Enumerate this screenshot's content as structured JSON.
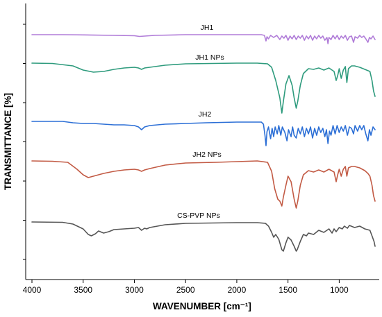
{
  "chart_data": {
    "type": "line",
    "title": "",
    "xlabel": "WAVENUMBER [cm⁻¹]",
    "ylabel": "TRANSMITTANCE [%]",
    "xlim": [
      4000,
      650
    ],
    "x_reversed": true,
    "x_ticks": [
      4000,
      3500,
      3000,
      2500,
      2000,
      1500,
      1000
    ],
    "x_tick_labels": [
      "4000",
      "3500",
      "3000",
      "2500",
      "2000",
      "1500",
      "1000"
    ],
    "y_tick_labels_shown": false,
    "grid": false,
    "legend": "none (inline series labels)",
    "series": [
      {
        "name": "JH1",
        "color": "#b07cd8",
        "offset": 0,
        "points": [
          [
            4000,
            0
          ],
          [
            3700,
            0
          ],
          [
            3500,
            -0.3
          ],
          [
            3200,
            -1
          ],
          [
            3000,
            -1.5
          ],
          [
            2950,
            -2.5
          ],
          [
            2900,
            -2
          ],
          [
            2800,
            -1
          ],
          [
            2500,
            0
          ],
          [
            2000,
            0
          ],
          [
            1760,
            0
          ],
          [
            1730,
            -1
          ],
          [
            1715,
            -9
          ],
          [
            1705,
            -3
          ],
          [
            1690,
            -6
          ],
          [
            1670,
            -1
          ],
          [
            1640,
            -4
          ],
          [
            1610,
            -1
          ],
          [
            1580,
            -7
          ],
          [
            1560,
            -2
          ],
          [
            1540,
            -5
          ],
          [
            1520,
            -1
          ],
          [
            1500,
            -8
          ],
          [
            1480,
            -2
          ],
          [
            1460,
            -6
          ],
          [
            1440,
            -1
          ],
          [
            1420,
            -7
          ],
          [
            1400,
            -2
          ],
          [
            1380,
            -5
          ],
          [
            1360,
            -1
          ],
          [
            1340,
            -8
          ],
          [
            1320,
            -2
          ],
          [
            1300,
            -6
          ],
          [
            1280,
            -1
          ],
          [
            1260,
            -8
          ],
          [
            1240,
            -2
          ],
          [
            1220,
            -6
          ],
          [
            1200,
            -1
          ],
          [
            1180,
            -5
          ],
          [
            1160,
            -2
          ],
          [
            1140,
            -8
          ],
          [
            1120,
            -4
          ],
          [
            1110,
            -13
          ],
          [
            1100,
            -4
          ],
          [
            1080,
            -7
          ],
          [
            1060,
            -1
          ],
          [
            1040,
            -6
          ],
          [
            1020,
            -1
          ],
          [
            1000,
            -7
          ],
          [
            980,
            -2
          ],
          [
            960,
            -5
          ],
          [
            940,
            -1
          ],
          [
            920,
            -8
          ],
          [
            900,
            -3
          ],
          [
            880,
            -2
          ],
          [
            860,
            -11
          ],
          [
            845,
            -3
          ],
          [
            820,
            -5
          ],
          [
            800,
            -1
          ],
          [
            780,
            -4
          ],
          [
            760,
            -2
          ],
          [
            740,
            -6
          ],
          [
            720,
            -11
          ],
          [
            705,
            -4
          ],
          [
            690,
            -6
          ],
          [
            670,
            -2
          ],
          [
            650,
            -7
          ]
        ]
      },
      {
        "name": "JH1 NPs",
        "color": "#2e9b7d",
        "offset": 1,
        "points": [
          [
            4000,
            0
          ],
          [
            3800,
            -0.5
          ],
          [
            3600,
            -4
          ],
          [
            3500,
            -10
          ],
          [
            3400,
            -13
          ],
          [
            3300,
            -12
          ],
          [
            3200,
            -9
          ],
          [
            3100,
            -7
          ],
          [
            3000,
            -6
          ],
          [
            2960,
            -7
          ],
          [
            2930,
            -9
          ],
          [
            2900,
            -7
          ],
          [
            2850,
            -6
          ],
          [
            2700,
            -3
          ],
          [
            2500,
            -1
          ],
          [
            2000,
            0
          ],
          [
            1800,
            0
          ],
          [
            1700,
            -1
          ],
          [
            1660,
            -6
          ],
          [
            1620,
            -25
          ],
          [
            1580,
            -50
          ],
          [
            1560,
            -72
          ],
          [
            1545,
            -55
          ],
          [
            1520,
            -30
          ],
          [
            1490,
            -18
          ],
          [
            1460,
            -32
          ],
          [
            1440,
            -50
          ],
          [
            1420,
            -65
          ],
          [
            1405,
            -55
          ],
          [
            1380,
            -32
          ],
          [
            1350,
            -15
          ],
          [
            1300,
            -8
          ],
          [
            1250,
            -9
          ],
          [
            1200,
            -7
          ],
          [
            1150,
            -10
          ],
          [
            1100,
            -7
          ],
          [
            1050,
            -12
          ],
          [
            1030,
            -25
          ],
          [
            1015,
            -18
          ],
          [
            1000,
            -8
          ],
          [
            980,
            -22
          ],
          [
            960,
            -10
          ],
          [
            940,
            -5
          ],
          [
            925,
            -28
          ],
          [
            910,
            -8
          ],
          [
            880,
            -4
          ],
          [
            850,
            -4
          ],
          [
            800,
            -6
          ],
          [
            750,
            -9
          ],
          [
            700,
            -12
          ],
          [
            680,
            -25
          ],
          [
            665,
            -40
          ],
          [
            650,
            -48
          ]
        ]
      },
      {
        "name": "JH2",
        "color": "#2c6fd6",
        "offset": 2,
        "points": [
          [
            4000,
            0
          ],
          [
            3700,
            0
          ],
          [
            3600,
            -2
          ],
          [
            3500,
            -3
          ],
          [
            3400,
            -3
          ],
          [
            3300,
            -4
          ],
          [
            3200,
            -5
          ],
          [
            3100,
            -5
          ],
          [
            3000,
            -6
          ],
          [
            2960,
            -8
          ],
          [
            2930,
            -12
          ],
          [
            2900,
            -8
          ],
          [
            2850,
            -6
          ],
          [
            2700,
            -4
          ],
          [
            2500,
            -3
          ],
          [
            2300,
            -2
          ],
          [
            2000,
            -1
          ],
          [
            1760,
            -1
          ],
          [
            1740,
            -4
          ],
          [
            1725,
            -20
          ],
          [
            1715,
            -35
          ],
          [
            1705,
            -15
          ],
          [
            1690,
            -8
          ],
          [
            1670,
            -25
          ],
          [
            1655,
            -10
          ],
          [
            1640,
            -22
          ],
          [
            1625,
            -8
          ],
          [
            1605,
            -18
          ],
          [
            1590,
            -6
          ],
          [
            1570,
            -20
          ],
          [
            1555,
            -8
          ],
          [
            1530,
            -16
          ],
          [
            1510,
            -28
          ],
          [
            1495,
            -12
          ],
          [
            1470,
            -22
          ],
          [
            1455,
            -8
          ],
          [
            1440,
            -20
          ],
          [
            1420,
            -24
          ],
          [
            1400,
            -10
          ],
          [
            1380,
            -18
          ],
          [
            1360,
            -8
          ],
          [
            1340,
            -22
          ],
          [
            1320,
            -10
          ],
          [
            1300,
            -18
          ],
          [
            1280,
            -8
          ],
          [
            1260,
            -24
          ],
          [
            1240,
            -10
          ],
          [
            1220,
            -20
          ],
          [
            1200,
            -8
          ],
          [
            1180,
            -16
          ],
          [
            1160,
            -10
          ],
          [
            1140,
            -22
          ],
          [
            1125,
            -12
          ],
          [
            1110,
            -32
          ],
          [
            1095,
            -14
          ],
          [
            1080,
            -20
          ],
          [
            1060,
            -6
          ],
          [
            1040,
            -18
          ],
          [
            1020,
            -6
          ],
          [
            1000,
            -16
          ],
          [
            980,
            -8
          ],
          [
            960,
            -14
          ],
          [
            940,
            -6
          ],
          [
            920,
            -20
          ],
          [
            900,
            -8
          ],
          [
            880,
            -10
          ],
          [
            860,
            -18
          ],
          [
            845,
            -6
          ],
          [
            820,
            -14
          ],
          [
            800,
            -6
          ],
          [
            780,
            -12
          ],
          [
            760,
            -6
          ],
          [
            740,
            -18
          ],
          [
            720,
            -28
          ],
          [
            705,
            -12
          ],
          [
            690,
            -20
          ],
          [
            670,
            -8
          ],
          [
            650,
            -12
          ]
        ]
      },
      {
        "name": "JH2 NPs",
        "color": "#c25a44",
        "offset": 3,
        "points": [
          [
            4000,
            0
          ],
          [
            3800,
            -0.5
          ],
          [
            3650,
            -2
          ],
          [
            3560,
            -12
          ],
          [
            3500,
            -20
          ],
          [
            3450,
            -24
          ],
          [
            3400,
            -22
          ],
          [
            3300,
            -18
          ],
          [
            3200,
            -15
          ],
          [
            3100,
            -13
          ],
          [
            3000,
            -12
          ],
          [
            2960,
            -13
          ],
          [
            2930,
            -15
          ],
          [
            2900,
            -13
          ],
          [
            2850,
            -11
          ],
          [
            2700,
            -6
          ],
          [
            2500,
            -3
          ],
          [
            2200,
            -2
          ],
          [
            2000,
            -1
          ],
          [
            1800,
            0
          ],
          [
            1700,
            -2
          ],
          [
            1660,
            -15
          ],
          [
            1630,
            -40
          ],
          [
            1600,
            -55
          ],
          [
            1580,
            -58
          ],
          [
            1560,
            -65
          ],
          [
            1545,
            -52
          ],
          [
            1520,
            -35
          ],
          [
            1500,
            -22
          ],
          [
            1470,
            -30
          ],
          [
            1440,
            -55
          ],
          [
            1420,
            -68
          ],
          [
            1405,
            -58
          ],
          [
            1380,
            -35
          ],
          [
            1350,
            -20
          ],
          [
            1300,
            -14
          ],
          [
            1250,
            -16
          ],
          [
            1200,
            -13
          ],
          [
            1150,
            -16
          ],
          [
            1100,
            -12
          ],
          [
            1050,
            -16
          ],
          [
            1030,
            -30
          ],
          [
            1015,
            -20
          ],
          [
            1000,
            -12
          ],
          [
            980,
            -22
          ],
          [
            960,
            -12
          ],
          [
            940,
            -8
          ],
          [
            925,
            -22
          ],
          [
            910,
            -10
          ],
          [
            880,
            -8
          ],
          [
            850,
            -8
          ],
          [
            800,
            -10
          ],
          [
            750,
            -14
          ],
          [
            720,
            -18
          ],
          [
            700,
            -22
          ],
          [
            680,
            -35
          ],
          [
            665,
            -50
          ],
          [
            650,
            -58
          ]
        ]
      },
      {
        "name": "CS-PVP NPs",
        "color": "#555555",
        "offset": 4,
        "points": [
          [
            4000,
            0
          ],
          [
            3700,
            -0.5
          ],
          [
            3600,
            -3
          ],
          [
            3500,
            -10
          ],
          [
            3450,
            -18
          ],
          [
            3420,
            -20
          ],
          [
            3380,
            -17
          ],
          [
            3350,
            -13
          ],
          [
            3300,
            -16
          ],
          [
            3250,
            -14
          ],
          [
            3200,
            -11
          ],
          [
            3100,
            -10
          ],
          [
            3000,
            -9
          ],
          [
            2960,
            -8
          ],
          [
            2930,
            -12
          ],
          [
            2900,
            -9
          ],
          [
            2880,
            -10
          ],
          [
            2850,
            -8
          ],
          [
            2700,
            -4
          ],
          [
            2500,
            -2
          ],
          [
            2000,
            -1
          ],
          [
            1800,
            -1
          ],
          [
            1720,
            -2
          ],
          [
            1690,
            -6
          ],
          [
            1660,
            -15
          ],
          [
            1640,
            -22
          ],
          [
            1620,
            -18
          ],
          [
            1590,
            -25
          ],
          [
            1560,
            -40
          ],
          [
            1545,
            -42
          ],
          [
            1520,
            -30
          ],
          [
            1500,
            -22
          ],
          [
            1470,
            -26
          ],
          [
            1440,
            -35
          ],
          [
            1420,
            -42
          ],
          [
            1410,
            -40
          ],
          [
            1380,
            -28
          ],
          [
            1350,
            -18
          ],
          [
            1320,
            -20
          ],
          [
            1300,
            -16
          ],
          [
            1250,
            -18
          ],
          [
            1200,
            -12
          ],
          [
            1150,
            -15
          ],
          [
            1100,
            -10
          ],
          [
            1070,
            -16
          ],
          [
            1050,
            -10
          ],
          [
            1030,
            -14
          ],
          [
            1000,
            -8
          ],
          [
            970,
            -10
          ],
          [
            950,
            -6
          ],
          [
            920,
            -9
          ],
          [
            900,
            -5
          ],
          [
            850,
            -8
          ],
          [
            800,
            -6
          ],
          [
            750,
            -10
          ],
          [
            700,
            -12
          ],
          [
            680,
            -20
          ],
          [
            660,
            -28
          ],
          [
            650,
            -35
          ]
        ]
      }
    ]
  }
}
